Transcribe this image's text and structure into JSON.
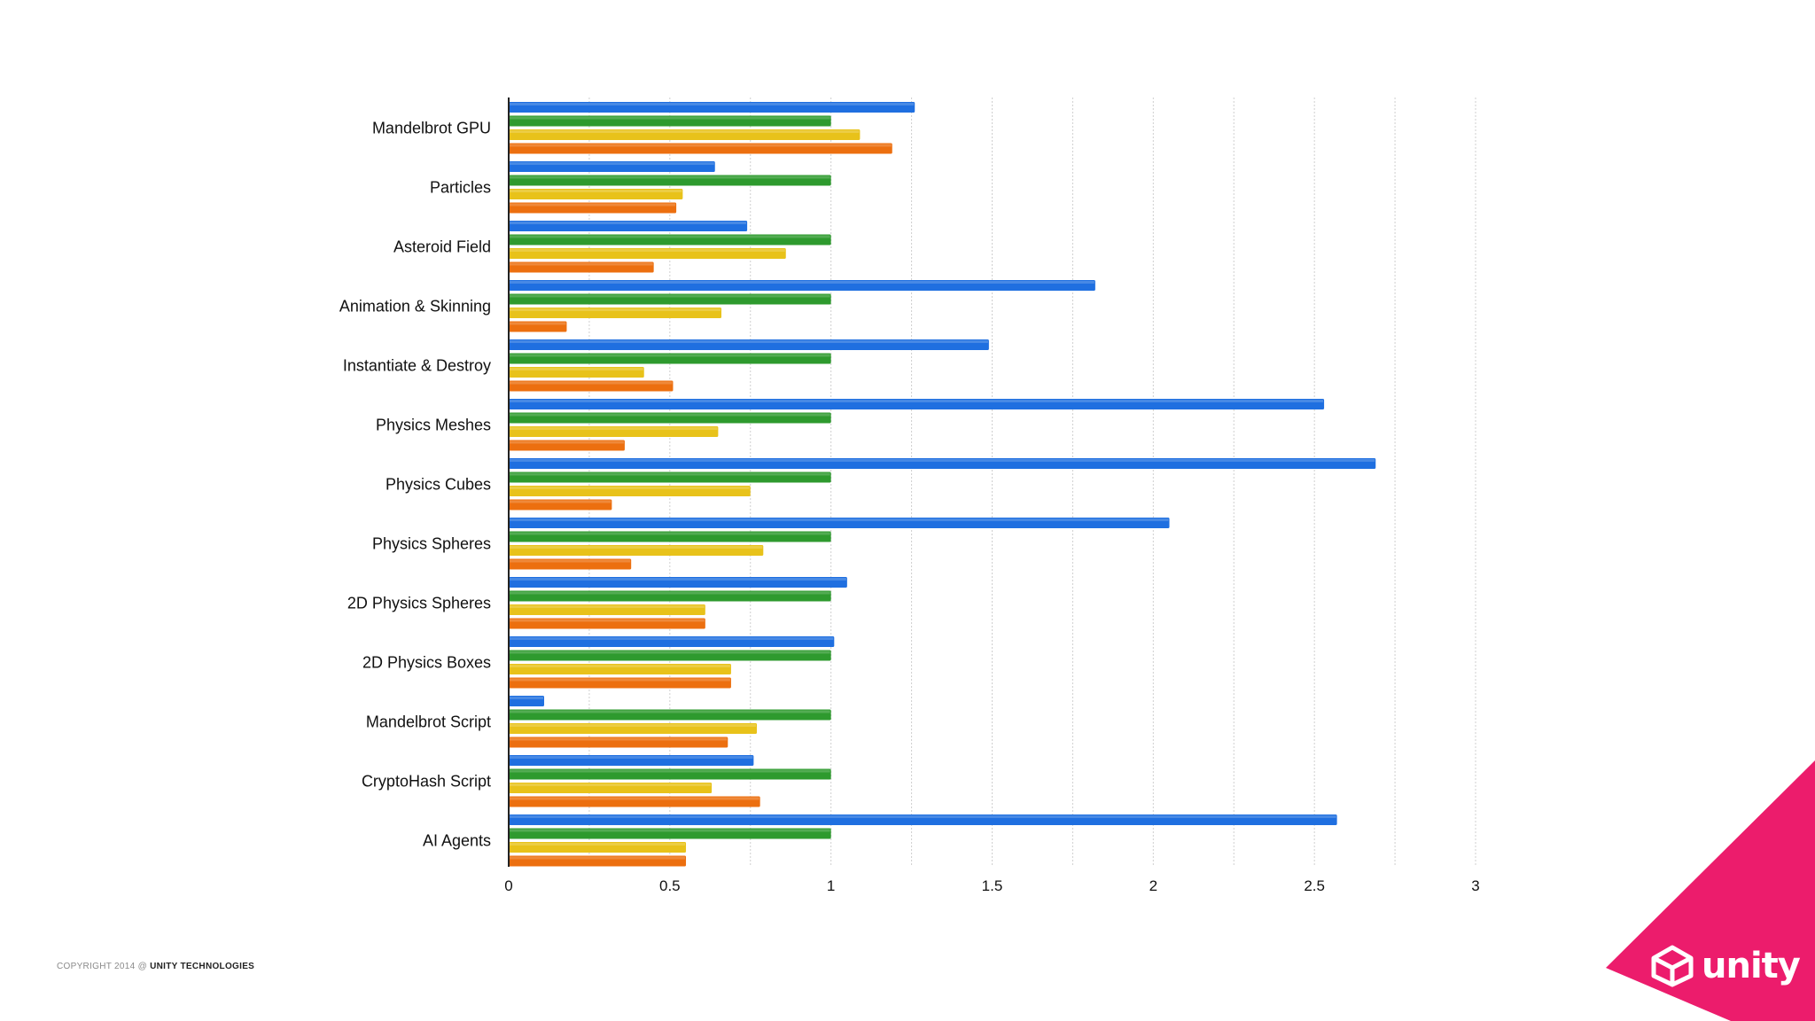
{
  "colors": {
    "blue": "#1f6fe0",
    "green": "#2e9a2e",
    "yellow": "#e8c21a",
    "orange": "#ec6f0f",
    "grid": "#cfcfcf",
    "brand": "#ec1c6c"
  },
  "chart_data": {
    "type": "bar",
    "orientation": "horizontal",
    "title": "",
    "xlabel": "",
    "ylabel": "",
    "xlim": [
      0,
      3
    ],
    "x_ticks": [
      "0",
      "0.5",
      "1",
      "1.5",
      "2",
      "2.5",
      "3"
    ],
    "grid": true,
    "legend": "none",
    "categories": [
      "Mandelbrot GPU",
      "Particles",
      "Asteroid Field",
      "Animation & Skinning",
      "Instantiate & Destroy",
      "Physics Meshes",
      "Physics Cubes",
      "Physics Spheres",
      "2D Physics Spheres",
      "2D Physics Boxes",
      "Mandelbrot Script",
      "CryptoHash Script",
      "AI Agents"
    ],
    "series": [
      {
        "name": "blue",
        "color": "#1f6fe0",
        "values": [
          1.26,
          0.64,
          0.74,
          1.82,
          1.49,
          2.53,
          2.69,
          2.05,
          1.05,
          1.01,
          0.11,
          0.76,
          2.57
        ]
      },
      {
        "name": "green",
        "color": "#2e9a2e",
        "values": [
          1.0,
          1.0,
          1.0,
          1.0,
          1.0,
          1.0,
          1.0,
          1.0,
          1.0,
          1.0,
          1.0,
          1.0,
          1.0
        ]
      },
      {
        "name": "yellow",
        "color": "#e8c21a",
        "values": [
          1.09,
          0.54,
          0.86,
          0.66,
          0.42,
          0.65,
          0.75,
          0.79,
          0.61,
          0.69,
          0.77,
          0.63,
          0.55
        ]
      },
      {
        "name": "orange",
        "color": "#ec6f0f",
        "values": [
          1.19,
          0.52,
          0.45,
          0.18,
          0.51,
          0.36,
          0.32,
          0.38,
          0.61,
          0.69,
          0.68,
          0.78,
          0.55
        ]
      }
    ]
  },
  "footer": {
    "copyright_prefix": "COPYRIGHT 2014 @",
    "copyright_company": "UNITY TECHNOLOGIES"
  },
  "brand": {
    "name": "unity",
    "logo_icon": "unity-cube-icon"
  }
}
